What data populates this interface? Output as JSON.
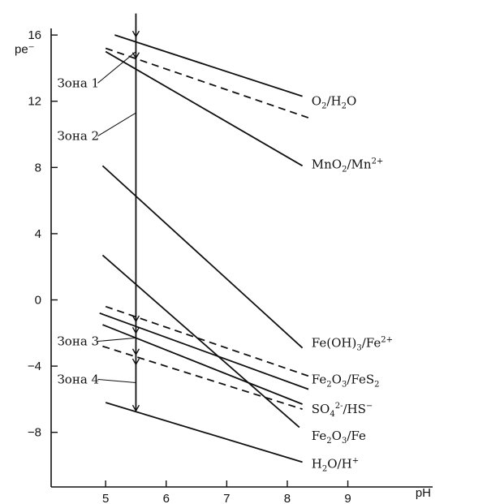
{
  "chart_data": {
    "type": "line",
    "xlabel": "pH",
    "ylabel": "pe⁻",
    "xlim": [
      4.1,
      10.4
    ],
    "ylim": [
      -11.3,
      16.4
    ],
    "xticks": [
      5,
      6,
      7,
      8,
      9
    ],
    "yticks": [
      16,
      12,
      8,
      4,
      0,
      -4,
      -8
    ],
    "grid": false,
    "series": [
      {
        "name": "O2/H2O",
        "style": "solid",
        "x": [
          5.15,
          8.25
        ],
        "y": [
          16.0,
          12.3
        ]
      },
      {
        "name": "O2/H2O",
        "style": "dashed",
        "x": [
          5.0,
          8.35
        ],
        "y": [
          15.2,
          11.0
        ]
      },
      {
        "name": "MnO2/Mn2+",
        "style": "solid",
        "x": [
          5.0,
          8.25
        ],
        "y": [
          15.0,
          8.1
        ]
      },
      {
        "name": "Fe(OH)3/Fe2+",
        "style": "solid",
        "x": [
          4.95,
          8.25
        ],
        "y": [
          8.1,
          -2.9
        ]
      },
      {
        "name": "Fe2O3/FeS2",
        "style": "dashed",
        "x": [
          5.0,
          8.35
        ],
        "y": [
          -0.4,
          -4.6
        ]
      },
      {
        "name": "Fe2O3/FeS2",
        "style": "solid",
        "x": [
          4.9,
          8.35
        ],
        "y": [
          -0.8,
          -5.4
        ]
      },
      {
        "name": "SO4 2-/HS-",
        "style": "solid",
        "x": [
          4.95,
          8.25
        ],
        "y": [
          -1.5,
          -6.3
        ]
      },
      {
        "name": "SO4 2-/HS-",
        "style": "dashed",
        "x": [
          4.95,
          8.25
        ],
        "y": [
          -2.8,
          -6.6
        ]
      },
      {
        "name": "Fe2O3/Fe",
        "style": "solid",
        "x": [
          4.95,
          8.2
        ],
        "y": [
          2.7,
          -7.7
        ]
      },
      {
        "name": "H2O/H+",
        "style": "solid",
        "x": [
          5.0,
          8.25
        ],
        "y": [
          -6.2,
          -9.8
        ]
      }
    ],
    "vertical_marker": {
      "x": 5.5,
      "y_top": 17.3,
      "y_bottom": -6.7
    },
    "zones": [
      {
        "label": "Зона 1",
        "tx": 4.2,
        "ty": 13.1,
        "px": 5.5,
        "py": 15.0
      },
      {
        "label": "Зона 2",
        "tx": 4.2,
        "ty": 9.9,
        "px": 5.5,
        "py": 11.3
      },
      {
        "label": "Зона 3",
        "tx": 4.2,
        "ty": -2.5,
        "px": 5.5,
        "py": -2.3
      },
      {
        "label": "Зона 4",
        "tx": 4.2,
        "ty": -4.8,
        "px": 5.5,
        "py": -5.0
      }
    ],
    "line_labels": [
      {
        "parts": [
          [
            "O",
            "n"
          ],
          [
            "2",
            "sub"
          ],
          [
            "/H",
            "n"
          ],
          [
            "2",
            "sub"
          ],
          [
            "O",
            "n"
          ]
        ],
        "x": 8.4,
        "y": 12.0
      },
      {
        "parts": [
          [
            "MnO",
            "n"
          ],
          [
            "2",
            "sub"
          ],
          [
            "/Mn",
            "n"
          ],
          [
            "2+",
            "sup"
          ]
        ],
        "x": 8.4,
        "y": 8.2
      },
      {
        "parts": [
          [
            "Fe(OH)",
            "n"
          ],
          [
            "3",
            "sub"
          ],
          [
            "/Fe",
            "n"
          ],
          [
            "2+",
            "sup"
          ]
        ],
        "x": 8.4,
        "y": -2.6
      },
      {
        "parts": [
          [
            "Fe",
            "n"
          ],
          [
            "2",
            "sub"
          ],
          [
            "O",
            "n"
          ],
          [
            "3",
            "sub"
          ],
          [
            "/FeS",
            "n"
          ],
          [
            "2",
            "sub"
          ]
        ],
        "x": 8.4,
        "y": -4.8
      },
      {
        "parts": [
          [
            "SO",
            "n"
          ],
          [
            "4",
            "sub"
          ],
          [
            "2-",
            "sup"
          ],
          [
            "/HS",
            "n"
          ],
          [
            "−",
            "sup"
          ]
        ],
        "x": 8.4,
        "y": -6.6
      },
      {
        "parts": [
          [
            "Fe",
            "n"
          ],
          [
            "2",
            "sub"
          ],
          [
            "O",
            "n"
          ],
          [
            "3",
            "sub"
          ],
          [
            "/Fe",
            "n"
          ]
        ],
        "x": 8.4,
        "y": -8.2
      },
      {
        "parts": [
          [
            "H",
            "n"
          ],
          [
            "2",
            "sub"
          ],
          [
            "O/H",
            "n"
          ],
          [
            "+",
            "sup"
          ]
        ],
        "x": 8.4,
        "y": -9.9
      }
    ]
  }
}
